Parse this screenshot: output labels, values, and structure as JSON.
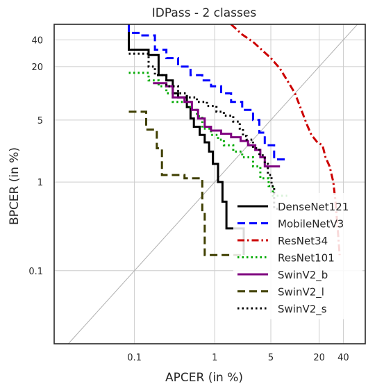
{
  "chart_data": {
    "type": "line",
    "title": "IDPass - 2 classes",
    "xlabel": "APCER (in %)",
    "ylabel": "BPCER (in %)",
    "x_scale": "log",
    "y_scale": "log",
    "xlim": [
      0.01,
      75
    ],
    "ylim": [
      0.015,
      60
    ],
    "x_ticks": [
      0.1,
      1,
      5,
      20,
      40
    ],
    "x_tick_labels": [
      "0.1",
      "1",
      "5",
      "20",
      "40"
    ],
    "y_ticks": [
      0.1,
      1,
      5,
      20,
      40
    ],
    "y_tick_labels": [
      "0.1",
      "1",
      "5",
      "20",
      "40"
    ],
    "grid": true,
    "diagonal_reference": true,
    "legend_position": "lower-right",
    "series": [
      {
        "name": "DenseNet121",
        "color": "#000000",
        "dash": "solid",
        "points": [
          [
            0.085,
            60
          ],
          [
            0.085,
            31
          ],
          [
            0.15,
            31
          ],
          [
            0.15,
            27
          ],
          [
            0.2,
            27
          ],
          [
            0.2,
            16
          ],
          [
            0.25,
            16
          ],
          [
            0.25,
            14
          ],
          [
            0.3,
            14
          ],
          [
            0.3,
            10
          ],
          [
            0.35,
            10
          ],
          [
            0.35,
            9
          ],
          [
            0.45,
            9
          ],
          [
            0.45,
            7
          ],
          [
            0.5,
            7
          ],
          [
            0.5,
            5.2
          ],
          [
            0.55,
            5.2
          ],
          [
            0.55,
            4.2
          ],
          [
            0.65,
            4.2
          ],
          [
            0.65,
            3.4
          ],
          [
            0.75,
            3.4
          ],
          [
            0.75,
            2.8
          ],
          [
            0.85,
            2.8
          ],
          [
            0.85,
            2.2
          ],
          [
            0.95,
            2.2
          ],
          [
            0.95,
            1.6
          ],
          [
            1.1,
            1.6
          ],
          [
            1.1,
            1.0
          ],
          [
            1.25,
            1.0
          ],
          [
            1.25,
            0.6
          ],
          [
            1.4,
            0.6
          ],
          [
            1.4,
            0.3
          ],
          [
            2.3,
            0.3
          ],
          [
            2.3,
            0.15
          ]
        ]
      },
      {
        "name": "MobileNetV3",
        "color": "#0000ff",
        "dash": "dashed",
        "points": [
          [
            0.085,
            60
          ],
          [
            0.085,
            48
          ],
          [
            0.12,
            48
          ],
          [
            0.12,
            45
          ],
          [
            0.18,
            45
          ],
          [
            0.18,
            31
          ],
          [
            0.25,
            31
          ],
          [
            0.25,
            25
          ],
          [
            0.35,
            25
          ],
          [
            0.35,
            20
          ],
          [
            0.5,
            20
          ],
          [
            0.5,
            16
          ],
          [
            0.7,
            16
          ],
          [
            0.7,
            14
          ],
          [
            0.9,
            14
          ],
          [
            0.9,
            12
          ],
          [
            1.2,
            12
          ],
          [
            1.2,
            10
          ],
          [
            1.6,
            10
          ],
          [
            1.6,
            8
          ],
          [
            2.2,
            8
          ],
          [
            2.2,
            6.5
          ],
          [
            3,
            6.5
          ],
          [
            3,
            5
          ],
          [
            3.6,
            5
          ],
          [
            3.6,
            3.6
          ],
          [
            4.2,
            3.6
          ],
          [
            4.2,
            2.6
          ],
          [
            5.5,
            2.6
          ],
          [
            5.5,
            1.8
          ],
          [
            7.5,
            1.8
          ]
        ]
      },
      {
        "name": "ResNet34",
        "color": "#cc0000",
        "dash": "dashdot",
        "points": [
          [
            1.6,
            60
          ],
          [
            2.2,
            46
          ],
          [
            3,
            38
          ],
          [
            4,
            30
          ],
          [
            5,
            25
          ],
          [
            6.5,
            19
          ],
          [
            8,
            14
          ],
          [
            10,
            10
          ],
          [
            12,
            6.5
          ],
          [
            14,
            4.5
          ],
          [
            16,
            3.4
          ],
          [
            19,
            2.8
          ],
          [
            22,
            2.6
          ],
          [
            24,
            1.9
          ],
          [
            27,
            1.5
          ],
          [
            30,
            1.0
          ],
          [
            32,
            0.6
          ],
          [
            34,
            0.3
          ],
          [
            36,
            0.15
          ]
        ]
      },
      {
        "name": "ResNet101",
        "color": "#00aa00",
        "dash": "dotted",
        "points": [
          [
            0.085,
            17
          ],
          [
            0.15,
            17
          ],
          [
            0.15,
            14
          ],
          [
            0.2,
            14
          ],
          [
            0.2,
            12
          ],
          [
            0.25,
            12
          ],
          [
            0.25,
            10
          ],
          [
            0.3,
            10
          ],
          [
            0.3,
            8
          ],
          [
            0.5,
            8
          ],
          [
            0.5,
            6.5
          ],
          [
            0.6,
            6.5
          ],
          [
            0.6,
            5.5
          ],
          [
            0.7,
            5.5
          ],
          [
            0.7,
            4
          ],
          [
            0.9,
            4
          ],
          [
            0.9,
            3.4
          ],
          [
            1.1,
            3.4
          ],
          [
            1.1,
            3
          ],
          [
            1.3,
            3
          ],
          [
            1.3,
            2.6
          ],
          [
            1.7,
            2.6
          ],
          [
            1.7,
            2.2
          ],
          [
            2.2,
            2.2
          ],
          [
            2.2,
            1.9
          ],
          [
            3,
            1.9
          ],
          [
            3,
            1.5
          ],
          [
            3.7,
            1.5
          ],
          [
            3.7,
            1.1
          ],
          [
            4.7,
            1.1
          ],
          [
            4.7,
            0.9
          ],
          [
            5.3,
            0.9
          ],
          [
            5.3,
            0.7
          ],
          [
            8,
            0.7
          ]
        ]
      },
      {
        "name": "SwinV2_b",
        "color": "#7f007f",
        "dash": "solid",
        "points": [
          [
            0.17,
            13
          ],
          [
            0.25,
            13
          ],
          [
            0.25,
            12
          ],
          [
            0.3,
            12
          ],
          [
            0.3,
            9
          ],
          [
            0.42,
            9
          ],
          [
            0.42,
            8
          ],
          [
            0.52,
            8
          ],
          [
            0.52,
            6.5
          ],
          [
            0.62,
            6.5
          ],
          [
            0.62,
            5.2
          ],
          [
            0.75,
            5.2
          ],
          [
            0.75,
            4.2
          ],
          [
            0.9,
            4.2
          ],
          [
            0.9,
            3.8
          ],
          [
            1.2,
            3.8
          ],
          [
            1.2,
            3.5
          ],
          [
            1.6,
            3.5
          ],
          [
            1.6,
            3.2
          ],
          [
            2.1,
            3.2
          ],
          [
            2.1,
            2.9
          ],
          [
            2.6,
            2.9
          ],
          [
            2.6,
            2.6
          ],
          [
            3.2,
            2.6
          ],
          [
            3.2,
            2.3
          ],
          [
            3.7,
            2.3
          ],
          [
            3.7,
            1.9
          ],
          [
            4.2,
            1.9
          ],
          [
            4.2,
            1.5
          ],
          [
            6.5,
            1.5
          ]
        ]
      },
      {
        "name": "SwinV2_l",
        "color": "#3f3f00",
        "dash": "dashed",
        "points": [
          [
            0.085,
            6.2
          ],
          [
            0.14,
            6.2
          ],
          [
            0.14,
            3.9
          ],
          [
            0.19,
            3.9
          ],
          [
            0.19,
            2.4
          ],
          [
            0.22,
            2.4
          ],
          [
            0.22,
            1.2
          ],
          [
            0.42,
            1.2
          ],
          [
            0.42,
            1.1
          ],
          [
            0.7,
            1.1
          ],
          [
            0.7,
            0.46
          ],
          [
            0.75,
            0.46
          ],
          [
            0.75,
            0.15
          ],
          [
            2.3,
            0.15
          ]
        ]
      },
      {
        "name": "SwinV2_s",
        "color": "#000000",
        "dash": "dotted",
        "points": [
          [
            0.085,
            28
          ],
          [
            0.15,
            28
          ],
          [
            0.15,
            20
          ],
          [
            0.18,
            20
          ],
          [
            0.18,
            16
          ],
          [
            0.25,
            16
          ],
          [
            0.25,
            12
          ],
          [
            0.35,
            12
          ],
          [
            0.35,
            10
          ],
          [
            0.45,
            10
          ],
          [
            0.45,
            9
          ],
          [
            0.6,
            9
          ],
          [
            0.6,
            8
          ],
          [
            0.8,
            8
          ],
          [
            0.8,
            7.2
          ],
          [
            1.05,
            7.2
          ],
          [
            1.05,
            6.2
          ],
          [
            1.3,
            6.2
          ],
          [
            1.3,
            5.6
          ],
          [
            1.7,
            5.6
          ],
          [
            1.7,
            4.8
          ],
          [
            2.05,
            4.8
          ],
          [
            2.05,
            4.0
          ],
          [
            2.25,
            4.0
          ],
          [
            2.25,
            3.3
          ],
          [
            2.5,
            3.3
          ],
          [
            2.5,
            3.0
          ],
          [
            3.0,
            3.0
          ],
          [
            3.0,
            2.4
          ],
          [
            3.6,
            2.4
          ],
          [
            3.6,
            2.0
          ],
          [
            4.2,
            2.0
          ],
          [
            4.2,
            1.6
          ],
          [
            4.6,
            1.6
          ],
          [
            4.6,
            1.2
          ],
          [
            5.1,
            1.2
          ],
          [
            5.1,
            0.9
          ],
          [
            5.5,
            0.9
          ],
          [
            5.5,
            0.5
          ],
          [
            6.5,
            0.5
          ]
        ]
      }
    ]
  }
}
